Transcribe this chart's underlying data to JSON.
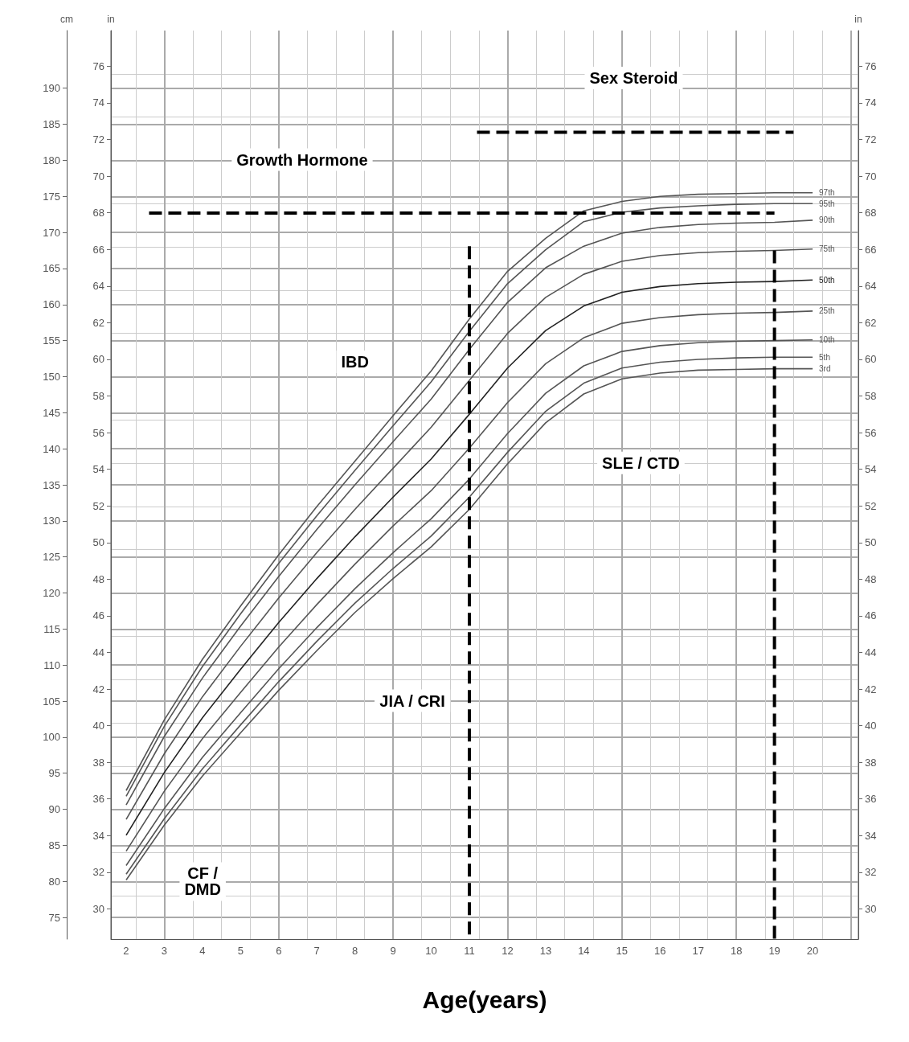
{
  "chart_data": {
    "type": "line",
    "xlabel": "Age(years)",
    "ylabel": "cm",
    "y2label": "in",
    "y3label": "in",
    "x": [
      2,
      3,
      4,
      5,
      6,
      7,
      8,
      9,
      10,
      11,
      12,
      13,
      14,
      15,
      16,
      17,
      18,
      19,
      20
    ],
    "xlim": [
      1.6,
      21.2
    ],
    "xticks": [
      2,
      3,
      4,
      5,
      6,
      7,
      8,
      9,
      10,
      11,
      12,
      13,
      14,
      15,
      16,
      17,
      18,
      19,
      20
    ],
    "ylim": [
      72,
      198
    ],
    "yticks": [
      75,
      80,
      85,
      90,
      95,
      100,
      105,
      110,
      115,
      120,
      125,
      130,
      135,
      140,
      145,
      150,
      155,
      160,
      165,
      170,
      175,
      180,
      185,
      190
    ],
    "y2lim": [
      28.35,
      77.95
    ],
    "y2ticks": [
      30,
      32,
      34,
      36,
      38,
      40,
      42,
      44,
      46,
      48,
      50,
      52,
      54,
      56,
      58,
      60,
      62,
      64,
      66,
      68,
      70,
      72,
      74,
      76
    ],
    "y3lim": [
      28.35,
      77.95
    ],
    "y3ticks": [
      30,
      32,
      34,
      36,
      38,
      40,
      42,
      44,
      46,
      48,
      50,
      52,
      54,
      56,
      58,
      60,
      62,
      64,
      66,
      68,
      70,
      72,
      74,
      76
    ],
    "grid": true,
    "legend": false,
    "marker": "none",
    "line_style": "solid",
    "series": [
      {
        "name": "97th",
        "color": "#555555",
        "values": [
          92.6,
          102.4,
          110.8,
          118.2,
          125.3,
          132.0,
          138.3,
          144.6,
          150.8,
          158.0,
          164.6,
          169.2,
          173.0,
          174.3,
          175.0,
          175.3,
          175.4,
          175.5,
          175.5
        ]
      },
      {
        "name": "95th",
        "color": "#555555",
        "values": [
          91.8,
          101.5,
          109.8,
          117.1,
          124.1,
          130.7,
          137.0,
          143.2,
          149.3,
          156.3,
          162.9,
          167.6,
          171.5,
          172.8,
          173.4,
          173.7,
          173.9,
          174.0,
          174.0
        ]
      },
      {
        "name": "90th",
        "color": "#555555",
        "values": [
          90.6,
          100.1,
          108.2,
          115.4,
          122.3,
          128.8,
          135.0,
          141.0,
          146.9,
          153.8,
          160.3,
          165.1,
          168.1,
          169.9,
          170.7,
          171.1,
          171.3,
          171.4,
          171.7
        ]
      },
      {
        "name": "75th",
        "color": "#555555",
        "values": [
          88.6,
          97.7,
          105.6,
          112.6,
          119.3,
          125.6,
          131.6,
          137.3,
          143.0,
          149.5,
          156.0,
          161.0,
          164.2,
          166.0,
          166.8,
          167.2,
          167.4,
          167.5,
          167.7
        ]
      },
      {
        "name": "50th",
        "color": "#222222",
        "values": [
          86.4,
          95.1,
          102.7,
          109.4,
          115.9,
          122.0,
          127.8,
          133.3,
          138.6,
          144.8,
          151.2,
          156.4,
          159.8,
          161.7,
          162.5,
          162.9,
          163.1,
          163.2,
          163.4
        ]
      },
      {
        "name": "25th",
        "color": "#555555",
        "values": [
          84.2,
          92.5,
          99.8,
          106.2,
          112.5,
          118.4,
          124.0,
          129.3,
          134.2,
          140.1,
          146.4,
          151.8,
          155.4,
          157.4,
          158.2,
          158.6,
          158.8,
          158.9,
          159.1
        ]
      },
      {
        "name": "10th",
        "color": "#555555",
        "values": [
          82.2,
          90.1,
          97.2,
          103.4,
          109.5,
          115.2,
          120.6,
          125.6,
          130.3,
          135.8,
          142.1,
          147.7,
          151.5,
          153.5,
          154.3,
          154.7,
          154.9,
          155.0,
          155.1
        ]
      },
      {
        "name": "5th",
        "color": "#555555",
        "values": [
          81.0,
          88.7,
          95.6,
          101.7,
          107.7,
          113.3,
          118.6,
          123.4,
          127.9,
          133.3,
          139.5,
          145.2,
          149.1,
          151.2,
          152.0,
          152.4,
          152.6,
          152.7,
          152.7
        ]
      },
      {
        "name": "3rd",
        "color": "#555555",
        "values": [
          80.2,
          87.8,
          94.6,
          100.6,
          106.5,
          112.0,
          117.3,
          122.0,
          126.4,
          131.6,
          137.9,
          143.6,
          147.6,
          149.7,
          150.5,
          150.9,
          151.0,
          151.1,
          151.1
        ]
      },
      {
        "color": "#000000",
        "line_style": "dashed",
        "x": [
          2.6,
          19.0
        ],
        "values": [
          172.7,
          172.7
        ]
      },
      {
        "color": "#000000",
        "line_style": "dashed",
        "x": [
          11.2,
          19.5
        ],
        "values": [
          183.9,
          183.9
        ]
      },
      {
        "color": "#000000",
        "line_style": "dashed",
        "x": [
          11,
          11
        ],
        "values": [
          168.1,
          72
        ]
      },
      {
        "color": "#000000",
        "line_style": "dashed",
        "x": [
          19,
          19
        ],
        "values": [
          167.5,
          72
        ]
      }
    ],
    "annotations": [
      "Growth Hormone",
      "Sex Steroid",
      "SLE / CTD",
      "IBD",
      "JIA / CRI",
      "CF /\nDMD"
    ]
  }
}
